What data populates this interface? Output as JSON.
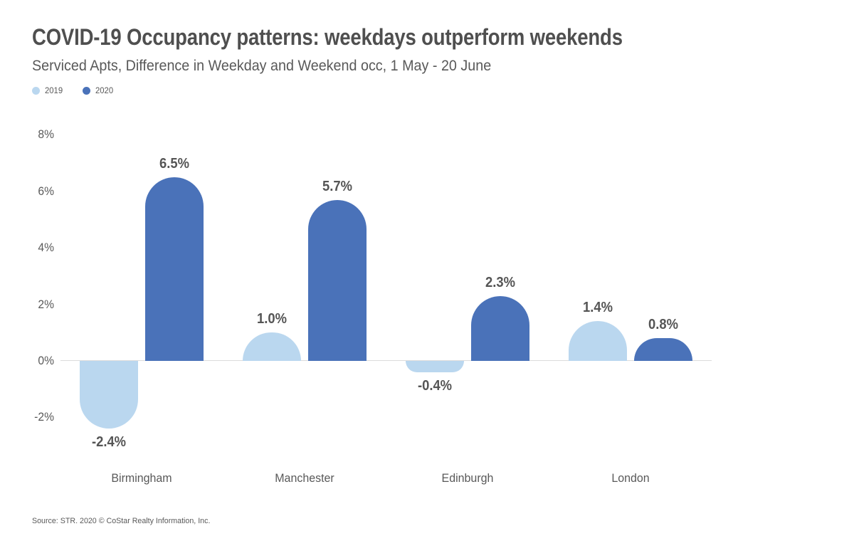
{
  "header": {
    "title": "COVID-19 Occupancy patterns: weekdays outperform weekends",
    "subtitle": "Serviced Apts, Difference in Weekday and Weekend occ, 1 May - 20 June"
  },
  "footer": {
    "source": "Source: STR. 2020 © CoStar Realty Information, Inc."
  },
  "colors": {
    "series_2019": "#bad7ef",
    "series_2020": "#4a72b9",
    "title_text": "#4f4f4f",
    "body_text": "#595959",
    "axis_line": "#dcdcdc",
    "background": "#ffffff"
  },
  "chart_data": {
    "type": "bar",
    "title": "COVID-19 Occupancy patterns: weekdays outperform weekends",
    "subtitle": "Serviced Apts, Difference in Weekday and Weekend occ, 1 May - 20 June",
    "categories": [
      "Birmingham",
      "Manchester",
      "Edinburgh",
      "London"
    ],
    "series": [
      {
        "name": "2019",
        "color": "#bad7ef",
        "values": [
          -2.4,
          1.0,
          -0.4,
          1.4
        ]
      },
      {
        "name": "2020",
        "color": "#4a72b9",
        "values": [
          6.5,
          5.7,
          2.3,
          0.8
        ]
      }
    ],
    "value_labels": [
      [
        "-2.4%",
        "1.0%",
        "-0.4%",
        "1.4%"
      ],
      [
        "6.5%",
        "5.7%",
        "2.3%",
        "0.8%"
      ]
    ],
    "yticks": [
      8,
      6,
      4,
      2,
      0,
      -2
    ],
    "ytick_labels": [
      "8%",
      "6%",
      "4%",
      "2%",
      "0%",
      "-2%"
    ],
    "ylim": [
      -3,
      8
    ],
    "xlabel": "",
    "ylabel": "",
    "grid": false,
    "legend_position": "top-left",
    "source": "Source: STR. 2020 © CoStar Realty Information, Inc."
  }
}
